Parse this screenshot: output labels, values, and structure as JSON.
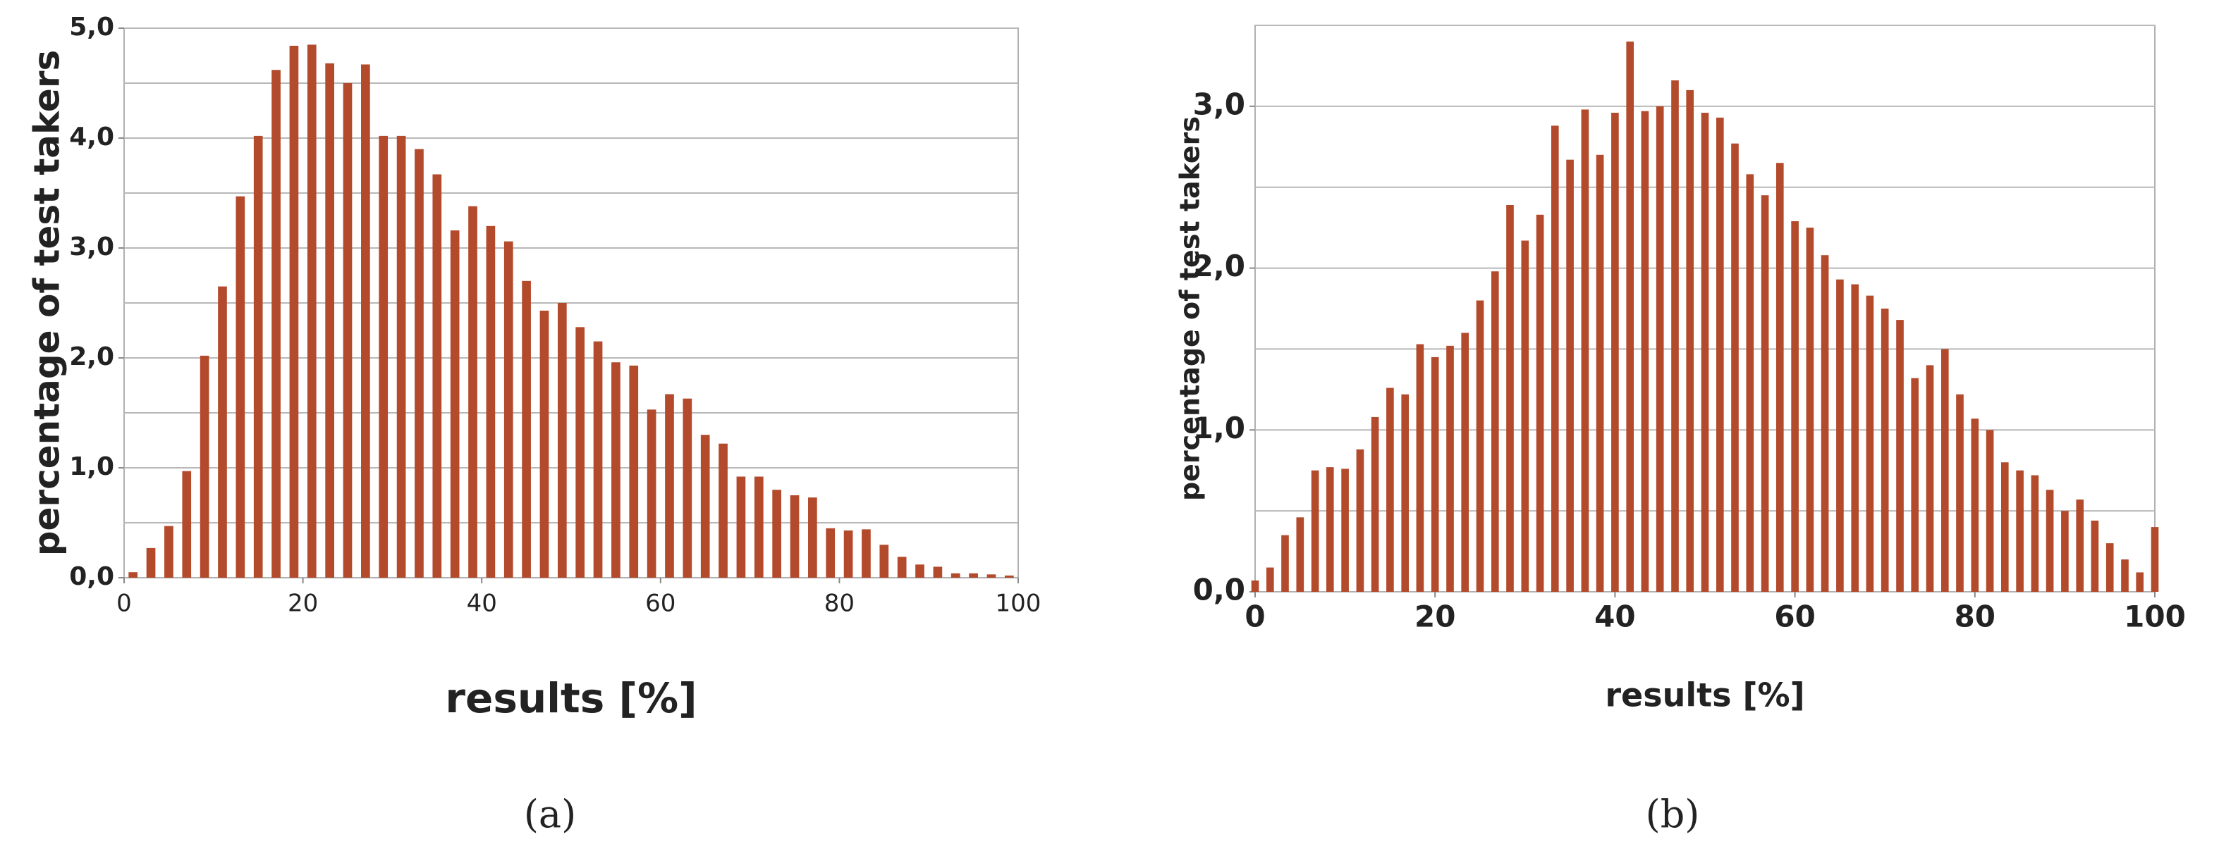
{
  "chart_data": [
    {
      "type": "bar",
      "caption": "(a)",
      "xlabel": "results [%]",
      "ylabel": "percentage of test takers",
      "color": "#b34a2c",
      "x": [
        1,
        3,
        5,
        7,
        9,
        11,
        13,
        15,
        17,
        19,
        21,
        23,
        25,
        27,
        29,
        31,
        33,
        35,
        37,
        39,
        41,
        43,
        45,
        47,
        49,
        51,
        53,
        55,
        57,
        59,
        61,
        63,
        65,
        67,
        69,
        71,
        73,
        75,
        77,
        79,
        81,
        83,
        85,
        87,
        89,
        91,
        93,
        95,
        97,
        99
      ],
      "values": [
        0.05,
        0.27,
        0.47,
        0.97,
        2.02,
        2.65,
        3.47,
        4.02,
        4.62,
        4.84,
        4.85,
        4.68,
        4.5,
        4.67,
        4.02,
        4.02,
        3.9,
        3.67,
        3.16,
        3.38,
        3.2,
        3.06,
        2.7,
        2.43,
        2.5,
        2.28,
        2.15,
        1.96,
        1.93,
        1.53,
        1.67,
        1.63,
        1.3,
        1.22,
        0.92,
        0.92,
        0.8,
        0.75,
        0.73,
        0.45,
        0.43,
        0.44,
        0.3,
        0.19,
        0.12,
        0.1,
        0.04,
        0.04,
        0.03,
        0.02
      ],
      "xlim": [
        0,
        100
      ],
      "xticks": [
        0,
        20,
        40,
        60,
        80,
        100
      ],
      "ylim": [
        0,
        5
      ],
      "yticks": [
        {
          "value": 0,
          "label": "0,0"
        },
        {
          "value": 1,
          "label": "1,0"
        },
        {
          "value": 2,
          "label": "2,0"
        },
        {
          "value": 3,
          "label": "3,0"
        },
        {
          "value": 4,
          "label": "4,0"
        },
        {
          "value": 5,
          "label": "5,0"
        }
      ],
      "ygrid": [
        0.5,
        1,
        1.5,
        2,
        2.5,
        3,
        3.5,
        4,
        4.5,
        5
      ]
    },
    {
      "type": "bar",
      "caption": "(b)",
      "xlabel": "results [%]",
      "ylabel": "percentage of test takers",
      "color": "#b34a2c",
      "x": [
        0,
        1.67,
        3.33,
        5,
        6.67,
        8.33,
        10,
        11.67,
        13.33,
        15,
        16.67,
        18.33,
        20,
        21.67,
        23.33,
        25,
        26.67,
        28.33,
        30,
        31.67,
        33.33,
        35,
        36.67,
        38.33,
        40,
        41.67,
        43.33,
        45,
        46.67,
        48.33,
        50,
        51.67,
        53.33,
        55,
        56.67,
        58.33,
        60,
        61.67,
        63.33,
        65,
        66.67,
        68.33,
        70,
        71.67,
        73.33,
        75,
        76.67,
        78.33,
        80,
        81.67,
        83.33,
        85,
        86.67,
        88.33,
        90,
        91.67,
        93.33,
        95,
        96.67,
        98.33,
        100
      ],
      "values": [
        0.07,
        0.15,
        0.35,
        0.46,
        0.75,
        0.77,
        0.76,
        0.88,
        1.08,
        1.26,
        1.22,
        1.53,
        1.45,
        1.52,
        1.6,
        1.8,
        1.98,
        2.39,
        2.17,
        2.33,
        2.88,
        2.67,
        2.98,
        2.7,
        2.96,
        3.4,
        2.97,
        3.0,
        3.16,
        3.1,
        2.96,
        2.93,
        2.77,
        2.58,
        2.45,
        2.65,
        2.29,
        2.25,
        2.08,
        1.93,
        1.9,
        1.83,
        1.75,
        1.68,
        1.32,
        1.4,
        1.5,
        1.22,
        1.07,
        1.0,
        0.8,
        0.75,
        0.72,
        0.63,
        0.5,
        0.57,
        0.44,
        0.3,
        0.2,
        0.12,
        0.4
      ],
      "xlim": [
        0,
        100
      ],
      "xticks": [
        0,
        20,
        40,
        60,
        80,
        100
      ],
      "ylim": [
        0,
        3.5
      ],
      "yticks": [
        {
          "value": 0,
          "label": "0,0"
        },
        {
          "value": 1,
          "label": "1,0"
        },
        {
          "value": 2,
          "label": "2,0"
        },
        {
          "value": 3,
          "label": "3,0"
        }
      ],
      "ygrid": [
        0.5,
        1,
        1.5,
        2,
        2.5,
        3,
        3.5
      ]
    }
  ]
}
